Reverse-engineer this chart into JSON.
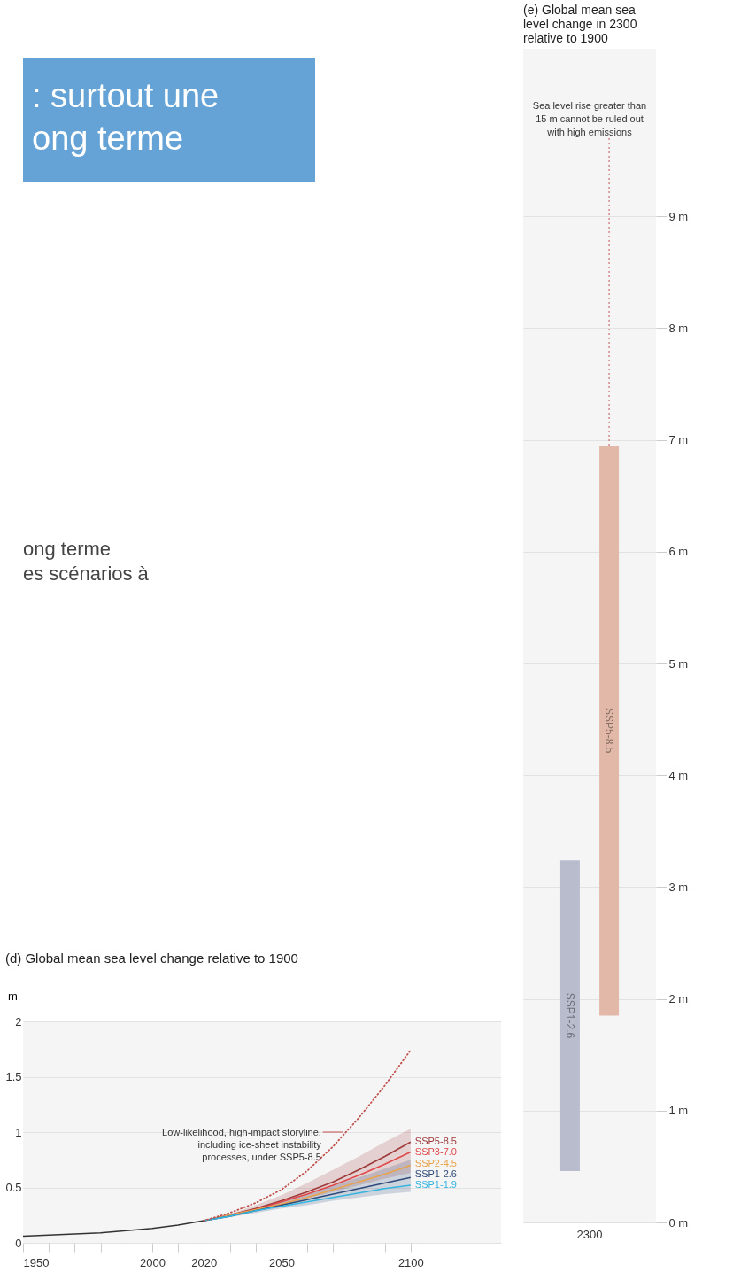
{
  "chart_data": [
    {
      "type": "other",
      "title": ": surtout une ong terme",
      "color": "#65a3d6",
      "annotations": [
        "ong terme",
        "es scénarios à"
      ]
    },
    {
      "type": "line",
      "title": "(d) Global mean sea level change relative to 1900",
      "ylabel": "m",
      "xlim": [
        1950,
        2135
      ],
      "xticks": [
        1950,
        {
          "value": 1960,
          "label": null
        },
        {
          "value": 1970,
          "label": null
        },
        {
          "value": 1980,
          "label": null
        },
        {
          "value": 1990,
          "label": null
        },
        2000,
        {
          "value": 2010,
          "label": null
        },
        2020,
        {
          "value": 2030,
          "label": null
        },
        {
          "value": 2040,
          "label": null
        },
        2050,
        {
          "value": 2060,
          "label": null
        },
        {
          "value": 2070,
          "label": null
        },
        {
          "value": 2080,
          "label": null
        },
        {
          "value": 2090,
          "label": null
        },
        2100
      ],
      "ylim": [
        0,
        2
      ],
      "yticks": [
        0,
        0.5,
        1,
        1.5,
        2
      ],
      "grid": "y",
      "legend": false,
      "series": [
        {
          "color": "#333333",
          "x": [
            1950,
            1960,
            1970,
            1980,
            1990,
            2000,
            2010,
            2020
          ],
          "values": [
            0.06,
            0.07,
            0.08,
            0.09,
            0.11,
            0.13,
            0.16,
            0.2
          ]
        },
        {
          "color": "#c0504d",
          "line_style": "dotted",
          "x": [
            2020,
            2030,
            2040,
            2050,
            2060,
            2070,
            2080,
            2090,
            2100
          ],
          "values": [
            0.2,
            0.27,
            0.36,
            0.48,
            0.65,
            0.87,
            1.13,
            1.42,
            1.74
          ]
        },
        {
          "name": "SSP5-8.5",
          "color": "#9e3a3a",
          "x": [
            2020,
            2030,
            2040,
            2050,
            2060,
            2070,
            2080,
            2090,
            2100
          ],
          "values": [
            0.2,
            0.25,
            0.31,
            0.38,
            0.46,
            0.55,
            0.66,
            0.78,
            0.91
          ],
          "lower": [
            0.2,
            0.24,
            0.29,
            0.34,
            0.4,
            0.46,
            0.52,
            0.58,
            0.63
          ],
          "upper": [
            0.2,
            0.26,
            0.34,
            0.43,
            0.54,
            0.66,
            0.78,
            0.91,
            1.03
          ]
        },
        {
          "name": "SSP3-7.0",
          "color": "#e0484a",
          "x": [
            2020,
            2030,
            2040,
            2050,
            2060,
            2070,
            2080,
            2090,
            2100
          ],
          "values": [
            0.2,
            0.25,
            0.3,
            0.37,
            0.44,
            0.52,
            0.61,
            0.71,
            0.82
          ]
        },
        {
          "name": "SSP2-4.5",
          "color": "#e8a34c",
          "x": [
            2020,
            2030,
            2040,
            2050,
            2060,
            2070,
            2080,
            2090,
            2100
          ],
          "values": [
            0.2,
            0.25,
            0.3,
            0.35,
            0.41,
            0.48,
            0.55,
            0.62,
            0.7
          ]
        },
        {
          "name": "SSP1-2.6",
          "color": "#2f4a7a",
          "x": [
            2020,
            2030,
            2040,
            2050,
            2060,
            2070,
            2080,
            2090,
            2100
          ],
          "values": [
            0.2,
            0.24,
            0.29,
            0.34,
            0.39,
            0.44,
            0.49,
            0.54,
            0.59
          ],
          "lower": [
            0.2,
            0.23,
            0.27,
            0.31,
            0.34,
            0.38,
            0.41,
            0.44,
            0.46
          ],
          "upper": [
            0.2,
            0.25,
            0.31,
            0.37,
            0.44,
            0.52,
            0.59,
            0.67,
            0.75
          ]
        },
        {
          "name": "SSP1-1.9",
          "color": "#33b5e0",
          "x": [
            2020,
            2030,
            2040,
            2050,
            2060,
            2070,
            2080,
            2090,
            2100
          ],
          "values": [
            0.2,
            0.24,
            0.29,
            0.33,
            0.37,
            0.41,
            0.45,
            0.49,
            0.52
          ]
        }
      ],
      "annotations": [
        {
          "text": "Low-likelihood, high-impact storyline, including ice-sheet instability processes, under SSP5-8.5",
          "x": 2075,
          "y": 1.0
        }
      ]
    },
    {
      "type": "bar",
      "title": "(e) Global mean sea level change in 2300 relative to 1900",
      "categories": [
        "2300"
      ],
      "ylim": [
        0,
        10.5
      ],
      "yticks": [
        {
          "value": 0,
          "label": "0 m"
        },
        {
          "value": 1,
          "label": "1 m"
        },
        {
          "value": 2,
          "label": "2 m"
        },
        {
          "value": 3,
          "label": "3 m"
        },
        {
          "value": 4,
          "label": "4 m"
        },
        {
          "value": 5,
          "label": "5 m"
        },
        {
          "value": 6,
          "label": "6 m"
        },
        {
          "value": 7,
          "label": "7 m"
        },
        {
          "value": 8,
          "label": "8 m"
        },
        {
          "value": 9,
          "label": "9 m"
        }
      ],
      "grid": "y",
      "legend": false,
      "series": [
        {
          "name": "SSP1-2.6",
          "color": "#b8bccd",
          "base": [
            0.46
          ],
          "values": [
            2.78
          ]
        },
        {
          "name": "SSP5-8.5",
          "color": "#e2b9a8",
          "base": [
            1.85
          ],
          "values": [
            5.1
          ]
        }
      ],
      "annotations": [
        "Sea level rise greater than 15 m cannot be ruled out with high emissions"
      ]
    }
  ]
}
